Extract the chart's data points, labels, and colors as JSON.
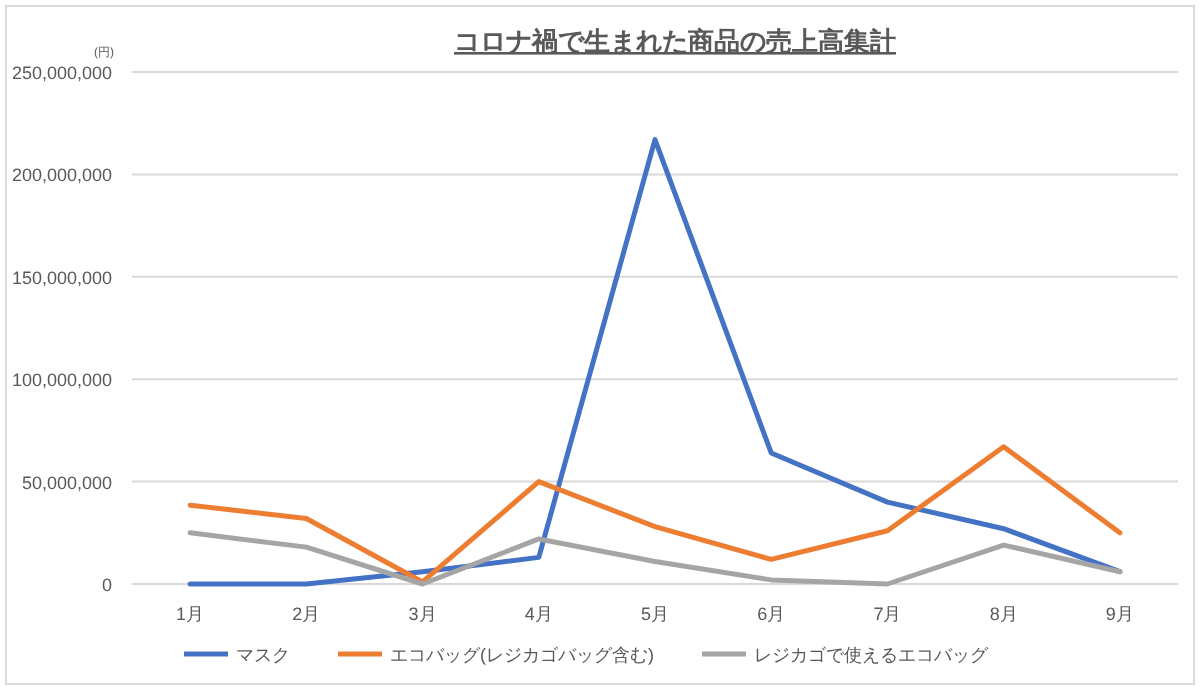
{
  "chart_data": {
    "type": "line",
    "title": "コロナ禍で生まれた商品の売上高集計",
    "ylabel": "(円)",
    "categories": [
      "1月",
      "2月",
      "3月",
      "4月",
      "5月",
      "6月",
      "7月",
      "8月",
      "9月"
    ],
    "series": [
      {
        "name": "マスク",
        "color": "#4472c4",
        "values": [
          0,
          0,
          6000000,
          13000000,
          217000000,
          64000000,
          40000000,
          27000000,
          6000000
        ]
      },
      {
        "name": "エコバッグ(レジカゴバッグ含む)",
        "color": "#ed7d31",
        "values": [
          38500000,
          32000000,
          1000000,
          50000000,
          28000000,
          12000000,
          26000000,
          67000000,
          25000000
        ]
      },
      {
        "name": "レジカゴで使えるエコバッグ",
        "color": "#a5a5a5",
        "values": [
          25000000,
          18000000,
          0,
          22000000,
          11000000,
          2000000,
          0,
          19000000,
          6000000
        ]
      }
    ],
    "ylim": [
      0,
      250000000
    ],
    "yticks": [
      {
        "value": 0,
        "label": "0"
      },
      {
        "value": 50000000,
        "label": "50,000,000"
      },
      {
        "value": 100000000,
        "label": "100,000,000"
      },
      {
        "value": 150000000,
        "label": "150,000,000"
      },
      {
        "value": 200000000,
        "label": "200,000,000"
      },
      {
        "value": 250000000,
        "label": "250,000,000"
      }
    ],
    "grid": "y",
    "legend": "bottom",
    "marker": "none",
    "line_style": "solid"
  }
}
